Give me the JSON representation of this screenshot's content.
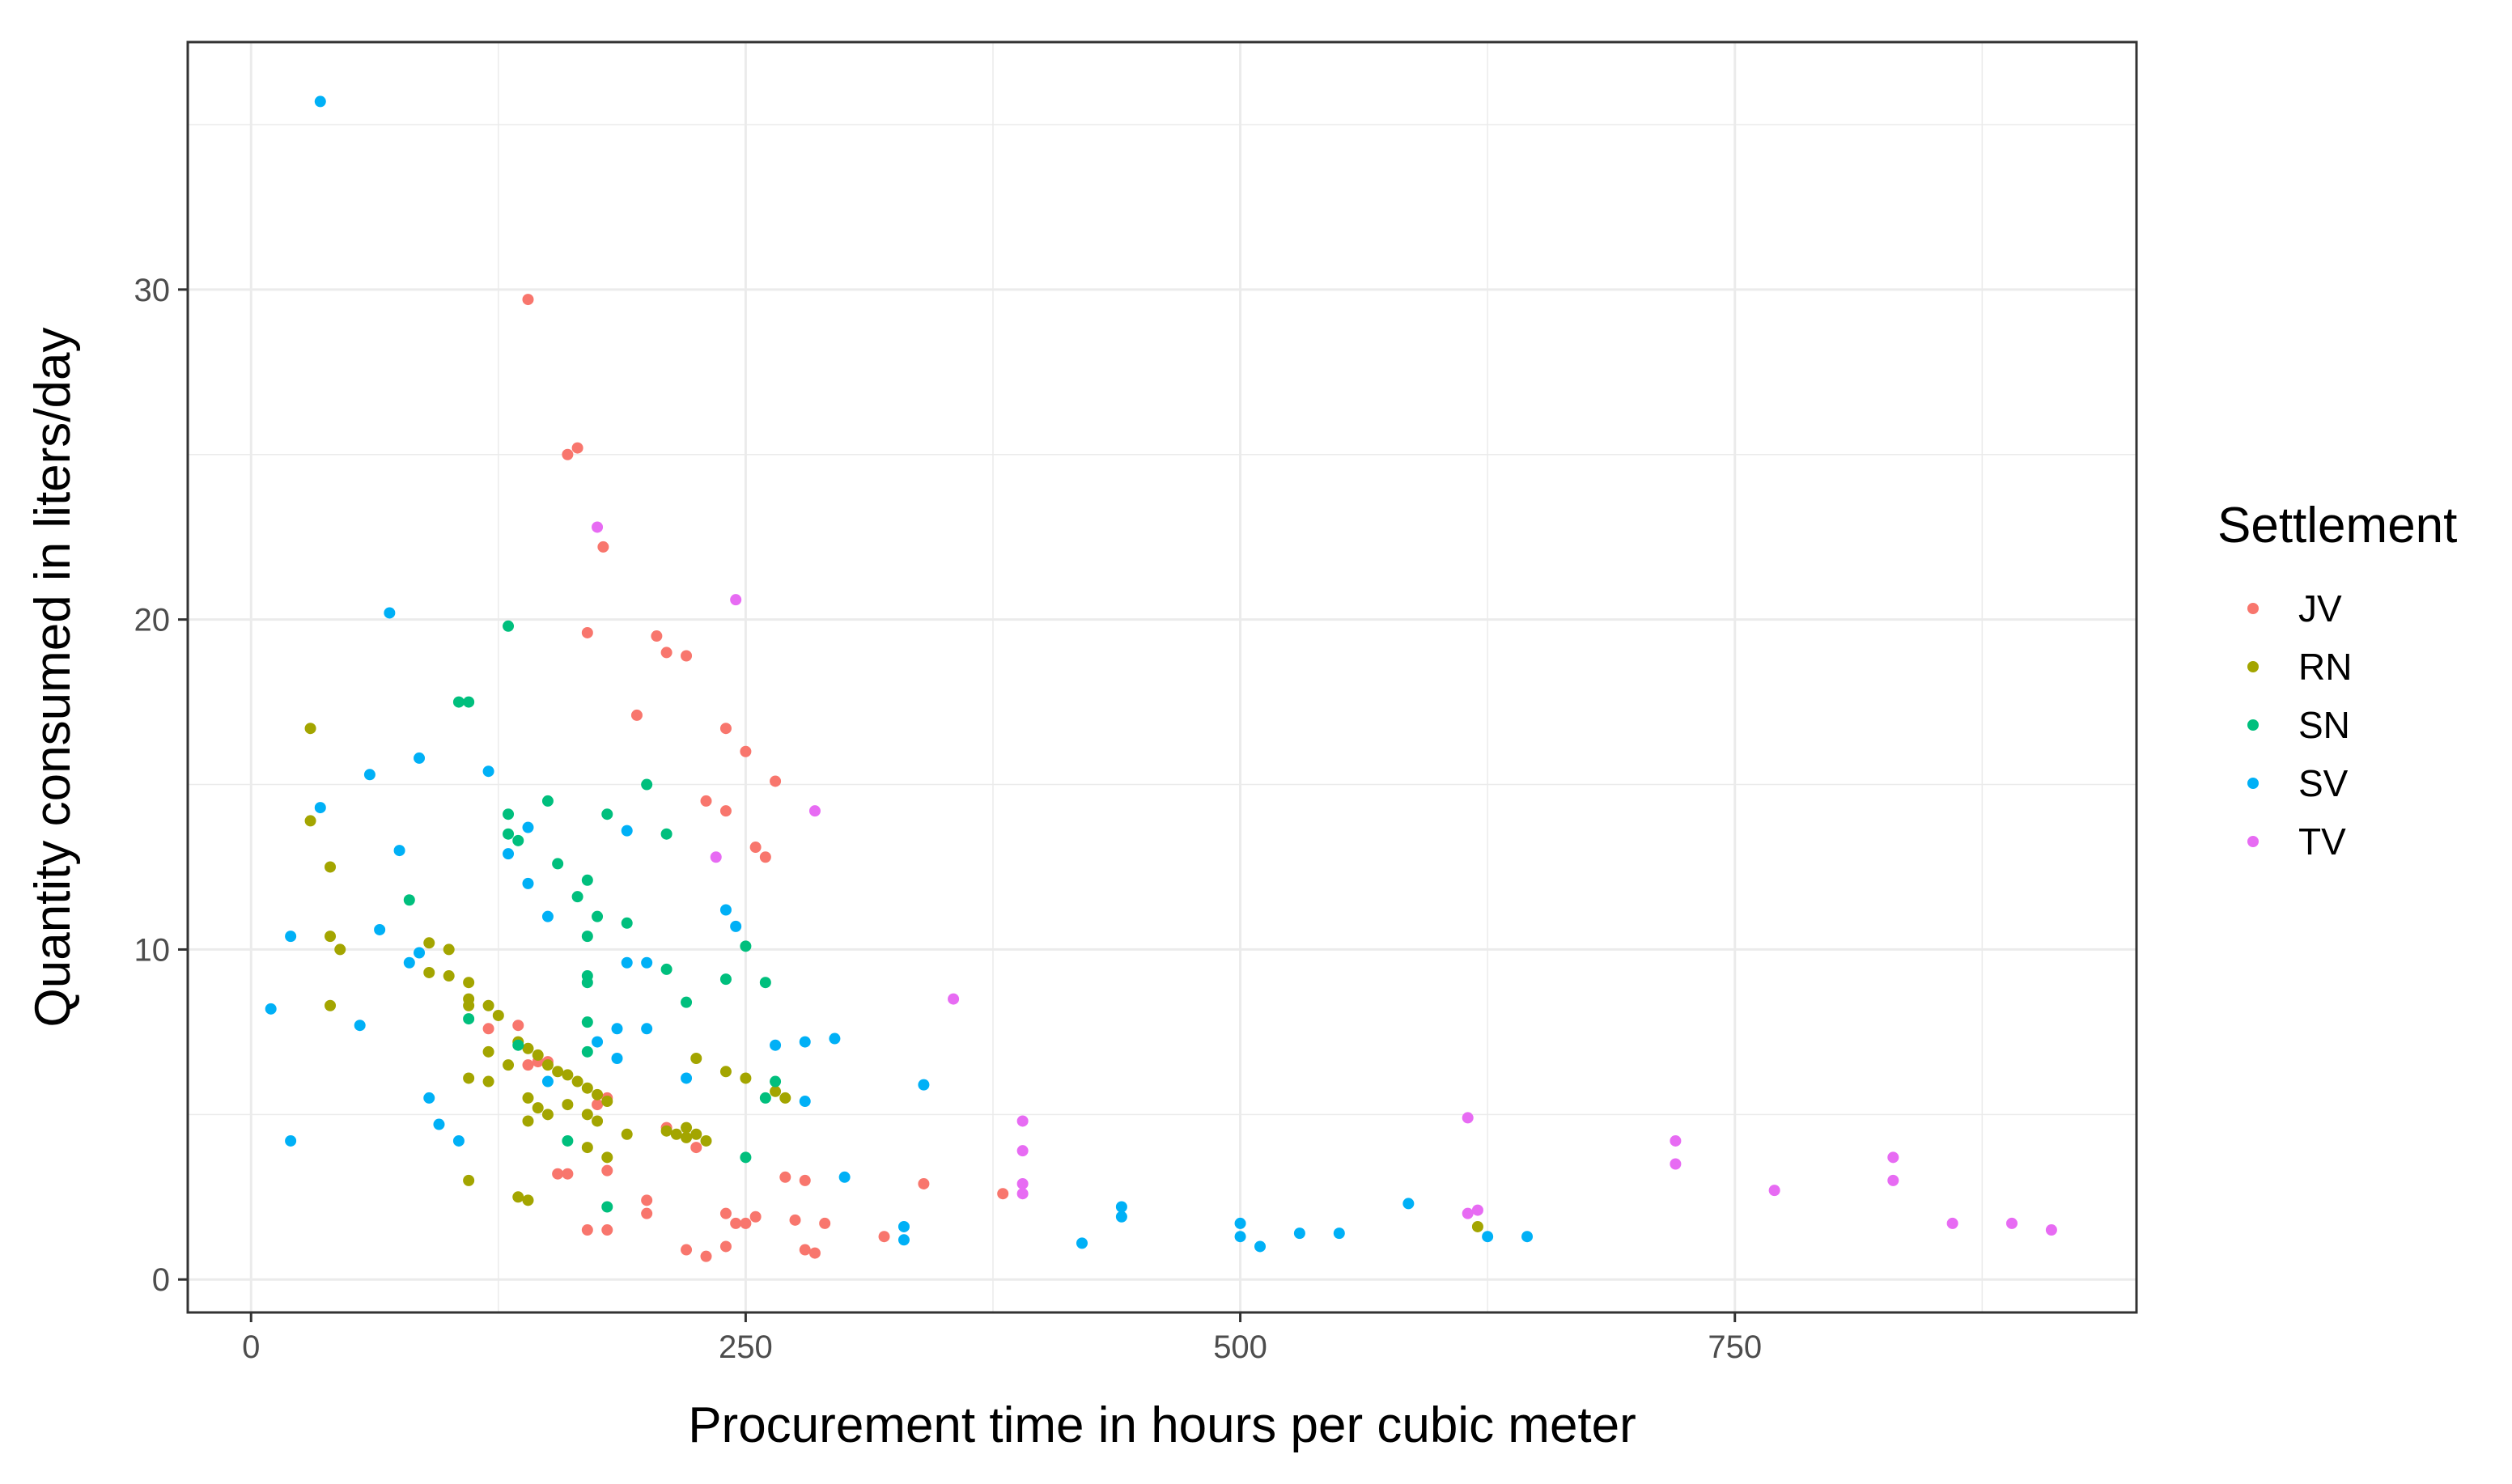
{
  "chart_data": {
    "type": "scatter",
    "title": "",
    "xlabel": "Procurement time in hours per cubic meter",
    "ylabel": "Quantity consumed in liters/day",
    "xlim": [
      -32,
      953
    ],
    "ylim": [
      -1,
      37.5
    ],
    "x_ticks": [
      0,
      250,
      500,
      750
    ],
    "x_tick_labels": [
      "0",
      "250",
      "500",
      "750"
    ],
    "y_ticks": [
      0,
      10,
      20,
      30
    ],
    "y_tick_labels": [
      "0",
      "10",
      "20",
      "30"
    ],
    "grid": true,
    "legend": {
      "title": "Settlement",
      "position": "right"
    },
    "series": [
      {
        "name": "JV",
        "color": "#F8766D",
        "points": [
          [
            140,
            29.7
          ],
          [
            160,
            25.0
          ],
          [
            165,
            25.2
          ],
          [
            178,
            22.2
          ],
          [
            170,
            19.6
          ],
          [
            205,
            19.5
          ],
          [
            210,
            19.0
          ],
          [
            220,
            18.9
          ],
          [
            195,
            17.1
          ],
          [
            240,
            16.7
          ],
          [
            250,
            16.0
          ],
          [
            265,
            15.1
          ],
          [
            230,
            14.5
          ],
          [
            240,
            14.2
          ],
          [
            255,
            13.1
          ],
          [
            260,
            12.8
          ],
          [
            120,
            7.6
          ],
          [
            135,
            7.7
          ],
          [
            140,
            6.5
          ],
          [
            145,
            6.6
          ],
          [
            150,
            6.6
          ],
          [
            175,
            5.3
          ],
          [
            180,
            5.5
          ],
          [
            180,
            3.3
          ],
          [
            155,
            3.2
          ],
          [
            160,
            3.2
          ],
          [
            210,
            4.6
          ],
          [
            225,
            4.0
          ],
          [
            270,
            3.1
          ],
          [
            280,
            3.0
          ],
          [
            200,
            2.4
          ],
          [
            200,
            2.0
          ],
          [
            240,
            2.0
          ],
          [
            245,
            1.7
          ],
          [
            255,
            1.9
          ],
          [
            250,
            1.7
          ],
          [
            275,
            1.8
          ],
          [
            290,
            1.7
          ],
          [
            170,
            1.5
          ],
          [
            180,
            1.5
          ],
          [
            240,
            1.0
          ],
          [
            220,
            0.9
          ],
          [
            230,
            0.7
          ],
          [
            280,
            0.9
          ],
          [
            285,
            0.8
          ],
          [
            320,
            1.3
          ],
          [
            340,
            2.9
          ],
          [
            380,
            2.6
          ]
        ]
      },
      {
        "name": "RN",
        "color": "#A3A500",
        "points": [
          [
            30,
            16.7
          ],
          [
            30,
            13.9
          ],
          [
            40,
            12.5
          ],
          [
            40,
            10.4
          ],
          [
            45,
            10.0
          ],
          [
            40,
            8.3
          ],
          [
            90,
            10.2
          ],
          [
            90,
            9.3
          ],
          [
            100,
            10.0
          ],
          [
            100,
            9.2
          ],
          [
            110,
            9.0
          ],
          [
            110,
            8.5
          ],
          [
            110,
            8.3
          ],
          [
            120,
            8.3
          ],
          [
            125,
            8.0
          ],
          [
            135,
            7.2
          ],
          [
            140,
            7.0
          ],
          [
            145,
            6.8
          ],
          [
            150,
            6.5
          ],
          [
            155,
            6.3
          ],
          [
            160,
            6.2
          ],
          [
            165,
            6.0
          ],
          [
            170,
            5.8
          ],
          [
            175,
            5.6
          ],
          [
            180,
            5.4
          ],
          [
            120,
            6.9
          ],
          [
            130,
            6.5
          ],
          [
            110,
            6.1
          ],
          [
            120,
            6.0
          ],
          [
            140,
            5.5
          ],
          [
            145,
            5.2
          ],
          [
            150,
            5.0
          ],
          [
            160,
            5.3
          ],
          [
            170,
            5.0
          ],
          [
            175,
            4.8
          ],
          [
            140,
            4.8
          ],
          [
            170,
            4.0
          ],
          [
            180,
            3.7
          ],
          [
            190,
            4.4
          ],
          [
            210,
            4.5
          ],
          [
            215,
            4.4
          ],
          [
            220,
            4.3
          ],
          [
            225,
            4.4
          ],
          [
            230,
            4.2
          ],
          [
            220,
            4.6
          ],
          [
            225,
            6.7
          ],
          [
            240,
            6.3
          ],
          [
            250,
            6.1
          ],
          [
            265,
            5.7
          ],
          [
            270,
            5.5
          ],
          [
            110,
            3.0
          ],
          [
            135,
            2.5
          ],
          [
            140,
            2.4
          ],
          [
            620,
            1.6
          ]
        ]
      },
      {
        "name": "SN",
        "color": "#00BF7D",
        "points": [
          [
            130,
            19.8
          ],
          [
            105,
            17.5
          ],
          [
            110,
            17.5
          ],
          [
            130,
            14.1
          ],
          [
            135,
            13.3
          ],
          [
            130,
            13.5
          ],
          [
            150,
            14.5
          ],
          [
            155,
            12.6
          ],
          [
            165,
            11.6
          ],
          [
            170,
            12.1
          ],
          [
            170,
            10.4
          ],
          [
            175,
            11.0
          ],
          [
            180,
            14.1
          ],
          [
            200,
            15.0
          ],
          [
            210,
            13.5
          ],
          [
            80,
            11.5
          ],
          [
            110,
            7.9
          ],
          [
            135,
            7.1
          ],
          [
            170,
            9.2
          ],
          [
            170,
            9.0
          ],
          [
            170,
            7.8
          ],
          [
            170,
            6.9
          ],
          [
            190,
            10.8
          ],
          [
            210,
            9.4
          ],
          [
            220,
            8.4
          ],
          [
            240,
            9.1
          ],
          [
            250,
            10.1
          ],
          [
            260,
            9.0
          ],
          [
            265,
            6.0
          ],
          [
            260,
            5.5
          ],
          [
            160,
            4.2
          ],
          [
            250,
            3.7
          ],
          [
            180,
            2.2
          ]
        ]
      },
      {
        "name": "SV",
        "color": "#00B0F6",
        "points": [
          [
            35,
            35.7
          ],
          [
            70,
            20.2
          ],
          [
            60,
            15.3
          ],
          [
            85,
            15.8
          ],
          [
            120,
            15.4
          ],
          [
            35,
            14.3
          ],
          [
            75,
            13.0
          ],
          [
            140,
            13.7
          ],
          [
            130,
            12.9
          ],
          [
            140,
            12.0
          ],
          [
            150,
            11.0
          ],
          [
            20,
            10.4
          ],
          [
            65,
            10.6
          ],
          [
            80,
            9.6
          ],
          [
            85,
            9.9
          ],
          [
            10,
            8.2
          ],
          [
            55,
            7.7
          ],
          [
            190,
            13.6
          ],
          [
            190,
            9.6
          ],
          [
            200,
            9.6
          ],
          [
            240,
            11.2
          ],
          [
            245,
            10.7
          ],
          [
            185,
            7.6
          ],
          [
            200,
            7.6
          ],
          [
            175,
            7.2
          ],
          [
            220,
            6.1
          ],
          [
            265,
            7.1
          ],
          [
            280,
            7.2
          ],
          [
            295,
            7.3
          ],
          [
            280,
            5.4
          ],
          [
            340,
            5.9
          ],
          [
            90,
            5.5
          ],
          [
            95,
            4.7
          ],
          [
            20,
            4.2
          ],
          [
            105,
            4.2
          ],
          [
            150,
            6.0
          ],
          [
            185,
            6.7
          ],
          [
            300,
            3.1
          ],
          [
            330,
            1.6
          ],
          [
            330,
            1.2
          ],
          [
            420,
            1.1
          ],
          [
            440,
            2.2
          ],
          [
            440,
            1.9
          ],
          [
            500,
            1.7
          ],
          [
            500,
            1.3
          ],
          [
            510,
            1.0
          ],
          [
            530,
            1.4
          ],
          [
            550,
            1.4
          ],
          [
            585,
            2.3
          ],
          [
            625,
            1.3
          ],
          [
            645,
            1.3
          ]
        ]
      },
      {
        "name": "TV",
        "color": "#E76BF3",
        "points": [
          [
            175,
            22.8
          ],
          [
            245,
            20.6
          ],
          [
            285,
            14.2
          ],
          [
            235,
            12.8
          ],
          [
            355,
            8.5
          ],
          [
            390,
            4.8
          ],
          [
            390,
            3.9
          ],
          [
            390,
            2.9
          ],
          [
            390,
            2.6
          ],
          [
            615,
            4.9
          ],
          [
            615,
            2.0
          ],
          [
            620,
            2.1
          ],
          [
            720,
            4.2
          ],
          [
            720,
            3.5
          ],
          [
            770,
            2.7
          ],
          [
            830,
            3.7
          ],
          [
            830,
            3.0
          ],
          [
            860,
            1.7
          ],
          [
            890,
            1.7
          ],
          [
            910,
            1.5
          ]
        ]
      }
    ]
  }
}
